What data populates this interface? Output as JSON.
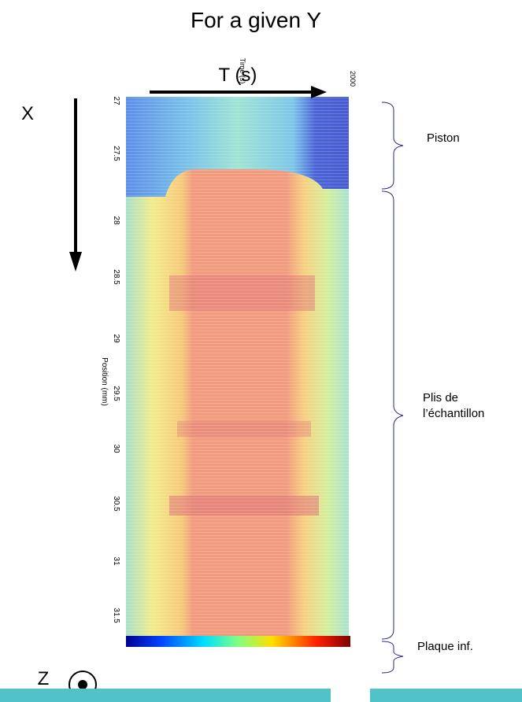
{
  "title": "For a given Y",
  "labels": {
    "x_axis": "X",
    "t_axis": "T (s)",
    "z_axis": "Z",
    "time_axis": "Time (s)",
    "position_axis": "Position (mm)",
    "time_end": "2000"
  },
  "position_ticks": [
    "27",
    "27.5",
    "28",
    "28.5",
    "29",
    "29.5",
    "30",
    "30.5",
    "31",
    "31.5"
  ],
  "annotations": {
    "piston": "Piston",
    "plis": [
      "Plis de",
      "l’échantillon"
    ],
    "plaque": "Plaque inf."
  }
}
